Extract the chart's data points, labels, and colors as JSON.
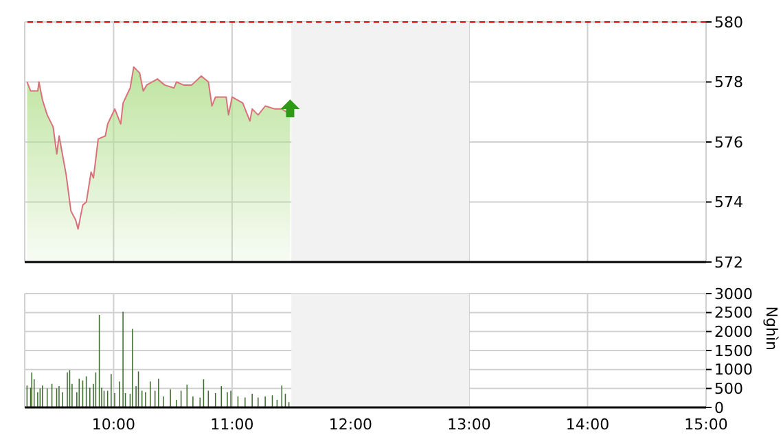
{
  "chart_data": [
    {
      "type": "area",
      "xlim": [
        9.25,
        15
      ],
      "ylim": [
        572,
        580
      ],
      "xticks": [
        {
          "value": 10,
          "label": null
        },
        {
          "value": 11,
          "label": null
        },
        {
          "value": 12,
          "label": null
        },
        {
          "value": 13,
          "label": null
        },
        {
          "value": 14,
          "label": null
        },
        {
          "value": 15,
          "label": null
        }
      ],
      "yticks": [
        572,
        574,
        576,
        578,
        580
      ],
      "tick_labels": "y",
      "grid": true,
      "legend": false,
      "x": [
        9.27,
        9.3,
        9.36,
        9.37,
        9.4,
        9.44,
        9.49,
        9.52,
        9.54,
        9.6,
        9.64,
        9.68,
        9.7,
        9.74,
        9.77,
        9.81,
        9.83,
        9.87,
        9.93,
        9.95,
        10.01,
        10.06,
        10.08,
        10.14,
        10.17,
        10.22,
        10.25,
        10.28,
        10.37,
        10.43,
        10.51,
        10.53,
        10.59,
        10.66,
        10.74,
        10.8,
        10.83,
        10.86,
        10.95,
        10.97,
        11.0,
        11.09,
        11.15,
        11.17,
        11.22,
        11.28,
        11.36,
        11.42,
        11.46,
        11.49
      ],
      "series": [
        {
          "color": "#d9707a",
          "values": [
            578.0,
            577.7,
            577.7,
            578.0,
            577.4,
            576.9,
            576.5,
            575.6,
            576.2,
            574.9,
            573.7,
            573.4,
            573.1,
            573.9,
            574.0,
            575.0,
            574.8,
            576.1,
            576.2,
            576.6,
            577.1,
            576.6,
            577.3,
            577.8,
            578.5,
            578.3,
            577.7,
            577.9,
            578.1,
            577.9,
            577.8,
            578.0,
            577.9,
            577.9,
            578.2,
            578.0,
            577.2,
            577.5,
            577.5,
            576.9,
            577.5,
            577.3,
            576.7,
            577.1,
            576.9,
            577.2,
            577.1,
            577.1,
            577.0,
            577.1
          ]
        }
      ],
      "ref_lines": [
        {
          "axis": "y",
          "value": 580,
          "color": "#e00000",
          "line_style": "dashed"
        }
      ],
      "bands": [
        {
          "axis": "x",
          "from": 11.5,
          "to": 13,
          "color": "#f2f2f2"
        }
      ]
    },
    {
      "type": "bar",
      "xlim": [
        9.25,
        15
      ],
      "ylim": [
        0,
        3000
      ],
      "xticks": [
        {
          "value": 10,
          "label": "10:00"
        },
        {
          "value": 11,
          "label": "11:00"
        },
        {
          "value": 12,
          "label": "12:00"
        },
        {
          "value": 13,
          "label": "13:00"
        },
        {
          "value": 14,
          "label": "14:00"
        },
        {
          "value": 15,
          "label": "15:00"
        }
      ],
      "yticks": [
        0,
        500,
        1000,
        1500,
        2000,
        2500,
        3000
      ],
      "ylabel": "Nghìn",
      "grid": true,
      "legend": false,
      "x": [
        9.27,
        9.3,
        9.31,
        9.33,
        9.36,
        9.38,
        9.4,
        9.44,
        9.48,
        9.52,
        9.54,
        9.57,
        9.61,
        9.63,
        9.65,
        9.69,
        9.71,
        9.74,
        9.77,
        9.8,
        9.83,
        9.85,
        9.88,
        9.9,
        9.92,
        9.95,
        9.98,
        10.01,
        10.05,
        10.08,
        10.1,
        10.14,
        10.16,
        10.19,
        10.21,
        10.24,
        10.27,
        10.31,
        10.35,
        10.38,
        10.42,
        10.48,
        10.53,
        10.57,
        10.62,
        10.67,
        10.73,
        10.76,
        10.8,
        10.86,
        10.91,
        10.96,
        10.99,
        11.05,
        11.11,
        11.17,
        11.22,
        11.28,
        11.34,
        11.38,
        11.42,
        11.45,
        11.48
      ],
      "series": [
        {
          "color": "#3d6b2e",
          "values": [
            580,
            520,
            920,
            740,
            400,
            500,
            580,
            500,
            620,
            500,
            560,
            400,
            920,
            980,
            620,
            400,
            760,
            710,
            820,
            520,
            620,
            920,
            2440,
            520,
            440,
            440,
            880,
            380,
            680,
            2520,
            380,
            360,
            2070,
            560,
            950,
            440,
            400,
            680,
            440,
            760,
            290,
            480,
            200,
            440,
            600,
            290,
            260,
            740,
            440,
            380,
            560,
            400,
            440,
            290,
            260,
            360,
            260,
            290,
            320,
            200,
            580,
            360,
            140
          ]
        }
      ],
      "bands": [
        {
          "axis": "x",
          "from": 11.5,
          "to": 13,
          "color": "#f2f2f2"
        }
      ]
    }
  ]
}
